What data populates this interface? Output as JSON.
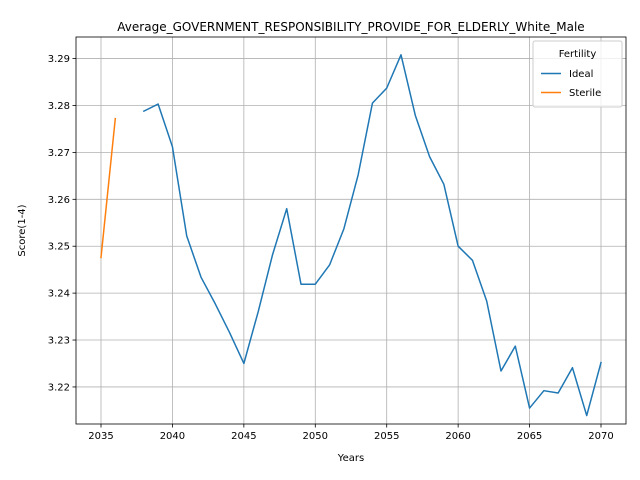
{
  "chart_data": {
    "type": "line",
    "title": "Average_GOVERNMENT_RESPONSIBILITY_PROVIDE_FOR_ELDERLY_White_Male",
    "xlabel": "Years",
    "ylabel": "Score(1-4)",
    "xlim": [
      2033.25,
      2071.75
    ],
    "ylim": [
      3.2121,
      3.2946
    ],
    "xticks": [
      2035,
      2040,
      2045,
      2050,
      2055,
      2060,
      2065,
      2070
    ],
    "xtick_labels": [
      "2035",
      "2040",
      "2045",
      "2050",
      "2055",
      "2060",
      "2065",
      "2070"
    ],
    "yticks": [
      3.22,
      3.23,
      3.24,
      3.25,
      3.26,
      3.27,
      3.28,
      3.29
    ],
    "ytick_labels": [
      "3.22",
      "3.23",
      "3.24",
      "3.25",
      "3.26",
      "3.27",
      "3.28",
      "3.29"
    ],
    "grid": true,
    "legend": {
      "title": "Fertility",
      "placement": "top-right"
    },
    "series": [
      {
        "name": "Ideal",
        "color": "#1f77b4",
        "x": [
          2038,
          2039,
          2040,
          2041,
          2042,
          2043,
          2044,
          2045,
          2046,
          2047,
          2048,
          2049,
          2050,
          2051,
          2052,
          2053,
          2054,
          2055,
          2056,
          2057,
          2058,
          2059,
          2060,
          2061,
          2062,
          2063,
          2064,
          2065,
          2066,
          2067,
          2068,
          2069,
          2070
        ],
        "y": [
          3.2788,
          3.2803,
          3.2712,
          3.2522,
          3.2434,
          3.2377,
          3.2316,
          3.225,
          3.236,
          3.2481,
          3.258,
          3.2419,
          3.2419,
          3.246,
          3.2537,
          3.2652,
          3.2805,
          3.2837,
          3.2908,
          3.2779,
          3.2691,
          3.2632,
          3.25,
          3.247,
          3.2383,
          3.2234,
          3.2287,
          3.2155,
          3.2192,
          3.2187,
          3.2241,
          3.2139,
          3.2252
        ]
      },
      {
        "name": "Sterile",
        "color": "#ff7f0e",
        "x": [
          2035,
          2036
        ],
        "y": [
          3.2476,
          3.2772
        ]
      }
    ]
  }
}
